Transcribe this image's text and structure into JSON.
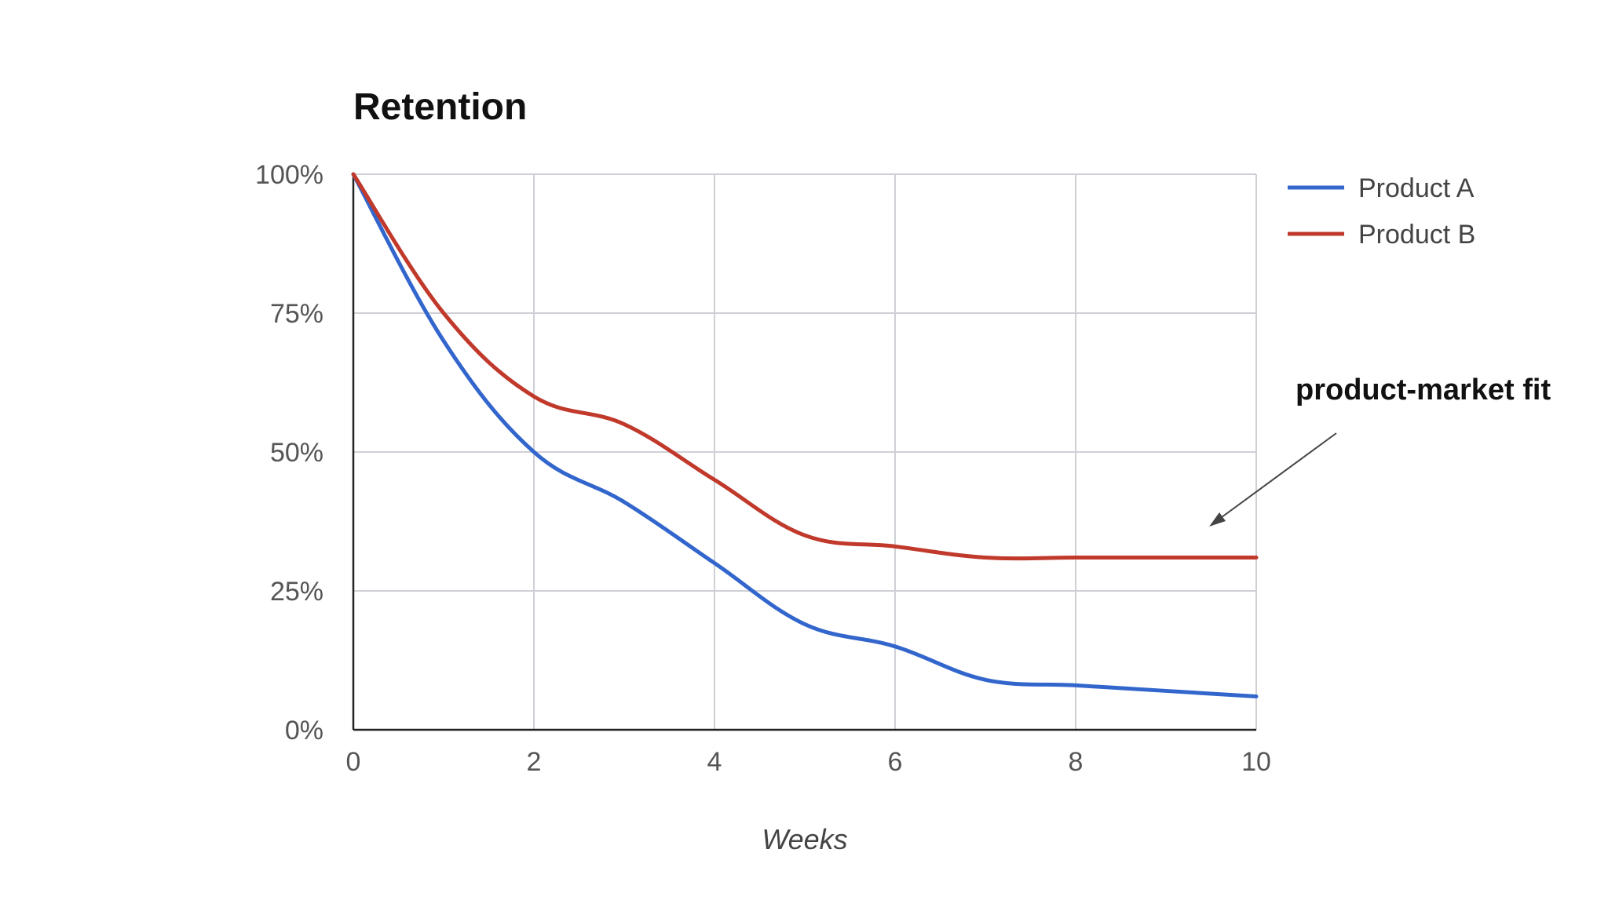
{
  "chart_data": {
    "type": "line",
    "title": "Retention",
    "xlabel": "Weeks",
    "ylabel": "",
    "xlim": [
      0,
      10
    ],
    "ylim": [
      0,
      100
    ],
    "x_ticks": [
      "0",
      "2",
      "4",
      "6",
      "8",
      "10"
    ],
    "y_ticks": [
      "0%",
      "25%",
      "50%",
      "75%",
      "100%"
    ],
    "grid": true,
    "legend_position": "right",
    "x": [
      0,
      1,
      2,
      3,
      4,
      5,
      6,
      7,
      8,
      9,
      10
    ],
    "series": [
      {
        "name": "Product A",
        "color": "#3366cc",
        "values": [
          100,
          70,
          50,
          41,
          30,
          19,
          15,
          9,
          8,
          7,
          6
        ]
      },
      {
        "name": "Product B",
        "color": "#c0392b",
        "values": [
          100,
          75,
          60,
          55,
          45,
          35,
          33,
          31,
          31,
          31,
          31
        ]
      }
    ],
    "annotation": {
      "text": "product-market fit"
    }
  }
}
